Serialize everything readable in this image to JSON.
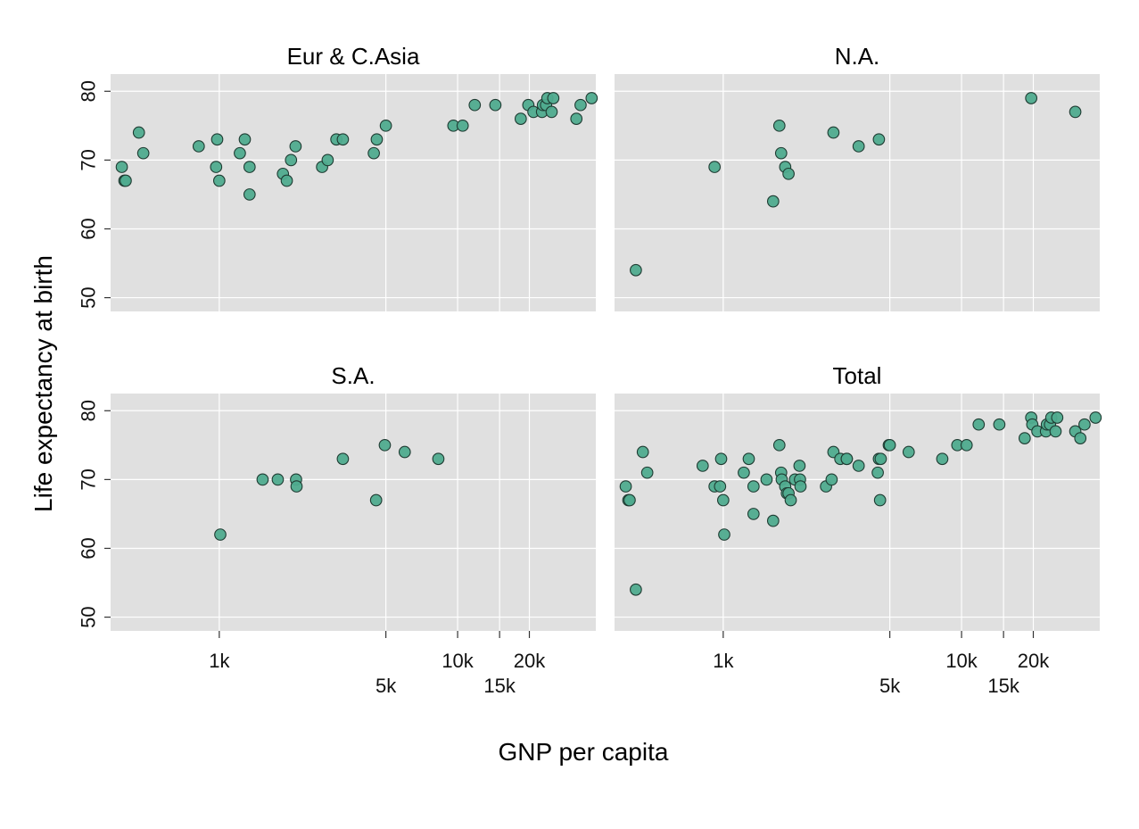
{
  "chart_data": {
    "type": "scatter",
    "xlabel": "GNP per capita",
    "ylabel": "Life expectancy at birth",
    "x_scale": "log",
    "xlim": [
      350,
      38000
    ],
    "ylim": [
      48,
      82.5
    ],
    "y_ticks": [
      50,
      60,
      70,
      80
    ],
    "x_ticks_row1": [
      {
        "value": 1000,
        "label": "1k"
      },
      {
        "value": 10000,
        "label": "10k"
      },
      {
        "value": 20000,
        "label": "20k"
      }
    ],
    "x_ticks_row2": [
      {
        "value": 5000,
        "label": "5k"
      },
      {
        "value": 15000,
        "label": "15k"
      }
    ],
    "point_color": "#4fab8e",
    "grid": true,
    "panels": [
      {
        "title": "Eur & C.Asia",
        "points": [
          [
            390,
            69
          ],
          [
            400,
            67
          ],
          [
            405,
            67
          ],
          [
            460,
            74
          ],
          [
            480,
            71
          ],
          [
            820,
            72
          ],
          [
            970,
            69
          ],
          [
            980,
            73
          ],
          [
            1000,
            67
          ],
          [
            1220,
            71
          ],
          [
            1280,
            73
          ],
          [
            1340,
            69
          ],
          [
            1340,
            65
          ],
          [
            1850,
            68
          ],
          [
            1920,
            67
          ],
          [
            2000,
            70
          ],
          [
            2090,
            72
          ],
          [
            2700,
            69
          ],
          [
            2850,
            70
          ],
          [
            3100,
            73
          ],
          [
            3300,
            73
          ],
          [
            4450,
            71
          ],
          [
            4580,
            73
          ],
          [
            5000,
            75
          ],
          [
            9600,
            75
          ],
          [
            10500,
            75
          ],
          [
            11800,
            78
          ],
          [
            14400,
            78
          ],
          [
            18400,
            76
          ],
          [
            19800,
            78
          ],
          [
            20800,
            77
          ],
          [
            22600,
            77
          ],
          [
            22800,
            78
          ],
          [
            23500,
            78
          ],
          [
            23800,
            79
          ],
          [
            24800,
            77
          ],
          [
            25200,
            79
          ],
          [
            31500,
            76
          ],
          [
            32800,
            78
          ],
          [
            36500,
            79
          ]
        ]
      },
      {
        "title": "N.A.",
        "points": [
          [
            430,
            54
          ],
          [
            920,
            69
          ],
          [
            1620,
            64
          ],
          [
            1720,
            75
          ],
          [
            1750,
            71
          ],
          [
            1820,
            69
          ],
          [
            1880,
            68
          ],
          [
            2900,
            74
          ],
          [
            3700,
            72
          ],
          [
            4500,
            73
          ],
          [
            19600,
            79
          ],
          [
            30000,
            77
          ]
        ]
      },
      {
        "title": "S.A.",
        "points": [
          [
            1010,
            62
          ],
          [
            1520,
            70
          ],
          [
            1760,
            70
          ],
          [
            2100,
            70
          ],
          [
            2110,
            69
          ],
          [
            3300,
            73
          ],
          [
            4550,
            67
          ],
          [
            4950,
            75
          ],
          [
            6000,
            74
          ],
          [
            8300,
            73
          ]
        ]
      },
      {
        "title": "Total",
        "points": [
          [
            390,
            69
          ],
          [
            400,
            67
          ],
          [
            405,
            67
          ],
          [
            430,
            54
          ],
          [
            460,
            74
          ],
          [
            480,
            71
          ],
          [
            820,
            72
          ],
          [
            920,
            69
          ],
          [
            970,
            69
          ],
          [
            980,
            73
          ],
          [
            1000,
            67
          ],
          [
            1010,
            62
          ],
          [
            1220,
            71
          ],
          [
            1280,
            73
          ],
          [
            1340,
            69
          ],
          [
            1340,
            65
          ],
          [
            1520,
            70
          ],
          [
            1620,
            64
          ],
          [
            1720,
            75
          ],
          [
            1750,
            71
          ],
          [
            1760,
            70
          ],
          [
            1820,
            69
          ],
          [
            1850,
            68
          ],
          [
            1880,
            68
          ],
          [
            1920,
            67
          ],
          [
            2000,
            70
          ],
          [
            2090,
            72
          ],
          [
            2100,
            70
          ],
          [
            2110,
            69
          ],
          [
            2700,
            69
          ],
          [
            2850,
            70
          ],
          [
            2900,
            74
          ],
          [
            3100,
            73
          ],
          [
            3300,
            73
          ],
          [
            3300,
            73
          ],
          [
            3700,
            72
          ],
          [
            4450,
            71
          ],
          [
            4500,
            73
          ],
          [
            4550,
            67
          ],
          [
            4580,
            73
          ],
          [
            4950,
            75
          ],
          [
            5000,
            75
          ],
          [
            6000,
            74
          ],
          [
            8300,
            73
          ],
          [
            9600,
            75
          ],
          [
            10500,
            75
          ],
          [
            11800,
            78
          ],
          [
            14400,
            78
          ],
          [
            18400,
            76
          ],
          [
            19600,
            79
          ],
          [
            19800,
            78
          ],
          [
            20800,
            77
          ],
          [
            22600,
            77
          ],
          [
            22800,
            78
          ],
          [
            23500,
            78
          ],
          [
            23800,
            79
          ],
          [
            24800,
            77
          ],
          [
            25200,
            79
          ],
          [
            30000,
            77
          ],
          [
            31500,
            76
          ],
          [
            32800,
            78
          ],
          [
            36500,
            79
          ]
        ]
      }
    ]
  }
}
